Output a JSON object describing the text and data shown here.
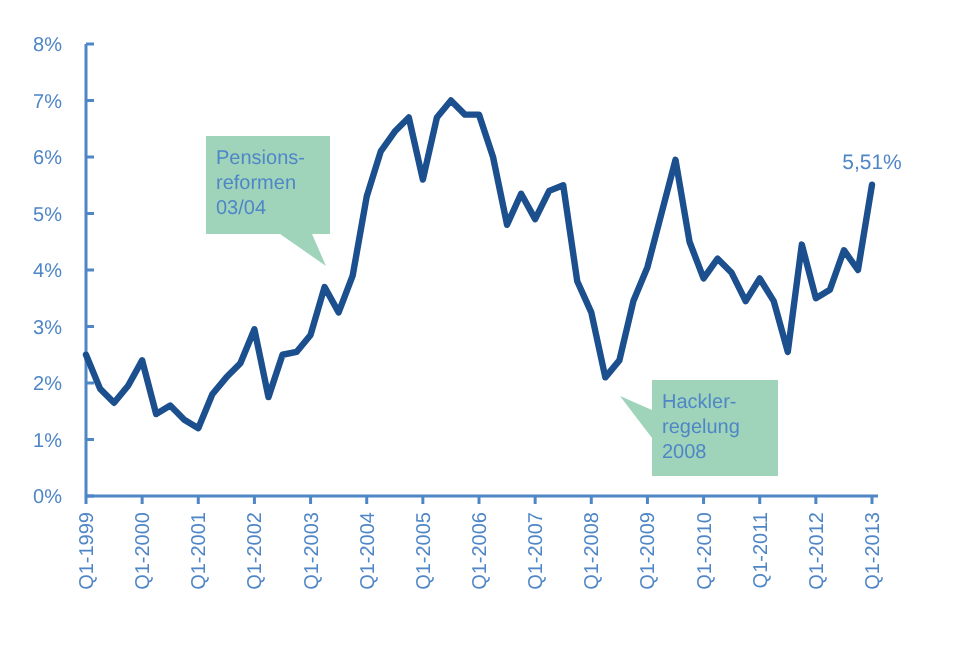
{
  "chart_data": {
    "type": "line",
    "categories": [
      "Q1-1999",
      null,
      null,
      null,
      "Q1-2000",
      null,
      null,
      null,
      "Q1-2001",
      null,
      null,
      null,
      "Q1-2002",
      null,
      null,
      null,
      "Q1-2003",
      null,
      null,
      null,
      "Q1-2004",
      null,
      null,
      null,
      "Q1-2005",
      null,
      null,
      null,
      "Q1-2006",
      null,
      null,
      null,
      "Q1-2007",
      null,
      null,
      null,
      "Q1-2008",
      null,
      null,
      null,
      "Q1-2009",
      null,
      null,
      null,
      "Q1-2010",
      null,
      null,
      null,
      "Q1-2011",
      null,
      null,
      null,
      "Q1-2012",
      null,
      null,
      null,
      "Q1-2013"
    ],
    "series": [
      {
        "color": "#1b4f8e",
        "values": [
          2.5,
          1.9,
          1.65,
          1.95,
          2.4,
          1.45,
          1.6,
          1.35,
          1.2,
          1.8,
          2.1,
          2.35,
          2.95,
          1.75,
          2.5,
          2.55,
          2.85,
          3.7,
          3.25,
          3.9,
          5.3,
          6.1,
          6.45,
          6.7,
          5.6,
          6.7,
          7.0,
          6.75,
          6.75,
          6.0,
          4.8,
          5.35,
          4.9,
          5.4,
          5.5,
          3.8,
          3.25,
          2.1,
          2.4,
          3.45,
          4.05,
          5.0,
          5.95,
          4.5,
          3.85,
          4.2,
          3.95,
          3.45,
          3.85,
          3.45,
          2.55,
          4.45,
          3.5,
          3.65,
          4.35,
          4.0,
          5.51
        ],
        "value_labels": [
          null,
          null,
          null,
          null,
          null,
          null,
          null,
          null,
          null,
          null,
          null,
          null,
          null,
          null,
          null,
          null,
          null,
          null,
          null,
          null,
          null,
          null,
          null,
          null,
          null,
          null,
          null,
          null,
          null,
          null,
          null,
          null,
          null,
          null,
          null,
          null,
          null,
          null,
          null,
          null,
          null,
          null,
          null,
          null,
          null,
          null,
          null,
          null,
          null,
          null,
          null,
          null,
          null,
          null,
          null,
          null,
          "5,51%"
        ]
      }
    ],
    "ylim": [
      0,
      8
    ],
    "yticks": [
      {
        "value": 0,
        "label": "0%"
      },
      {
        "value": 1,
        "label": "1%"
      },
      {
        "value": 2,
        "label": "2%"
      },
      {
        "value": 3,
        "label": "3%"
      },
      {
        "value": 4,
        "label": "4%"
      },
      {
        "value": 5,
        "label": "5%"
      },
      {
        "value": 6,
        "label": "6%"
      },
      {
        "value": 7,
        "label": "7%"
      },
      {
        "value": 8,
        "label": "8%"
      }
    ],
    "grid": false,
    "marker": "none",
    "line_style": "solid",
    "annotations": [
      "Pensions-\nreformen\n03/04",
      "Hackler-\nregelung\n2008"
    ]
  }
}
